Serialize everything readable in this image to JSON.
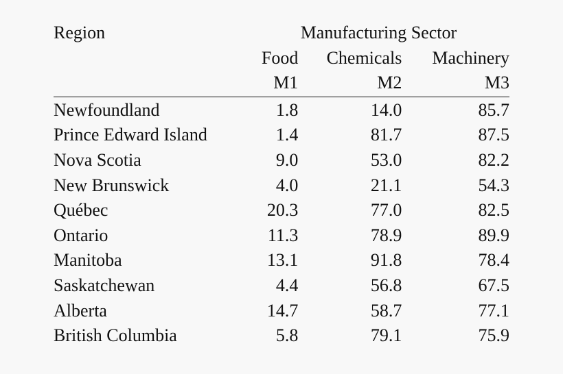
{
  "table": {
    "region_header": "Region",
    "sector_header": "Manufacturing Sector",
    "columns": [
      {
        "name": "Food",
        "code": "M1"
      },
      {
        "name": "Chemicals",
        "code": "M2"
      },
      {
        "name": "Machinery",
        "code": "M3"
      }
    ],
    "rows": [
      {
        "region": "Newfoundland",
        "values": [
          "1.8",
          "14.0",
          "85.7"
        ]
      },
      {
        "region": "Prince Edward Island",
        "values": [
          "1.4",
          "81.7",
          "87.5"
        ]
      },
      {
        "region": "Nova Scotia",
        "values": [
          "9.0",
          "53.0",
          "82.2"
        ]
      },
      {
        "region": "New Brunswick",
        "values": [
          "4.0",
          "21.1",
          "54.3"
        ]
      },
      {
        "region": "Québec",
        "values": [
          "20.3",
          "77.0",
          "82.5"
        ]
      },
      {
        "region": "Ontario",
        "values": [
          "11.3",
          "78.9",
          "89.9"
        ]
      },
      {
        "region": "Manitoba",
        "values": [
          "13.1",
          "91.8",
          "78.4"
        ]
      },
      {
        "region": "Saskatchewan",
        "values": [
          "4.4",
          "56.8",
          "67.5"
        ]
      },
      {
        "region": "Alberta",
        "values": [
          "14.7",
          "58.7",
          "77.1"
        ]
      },
      {
        "region": "British Columbia",
        "values": [
          "5.8",
          "79.1",
          "75.9"
        ]
      }
    ]
  }
}
